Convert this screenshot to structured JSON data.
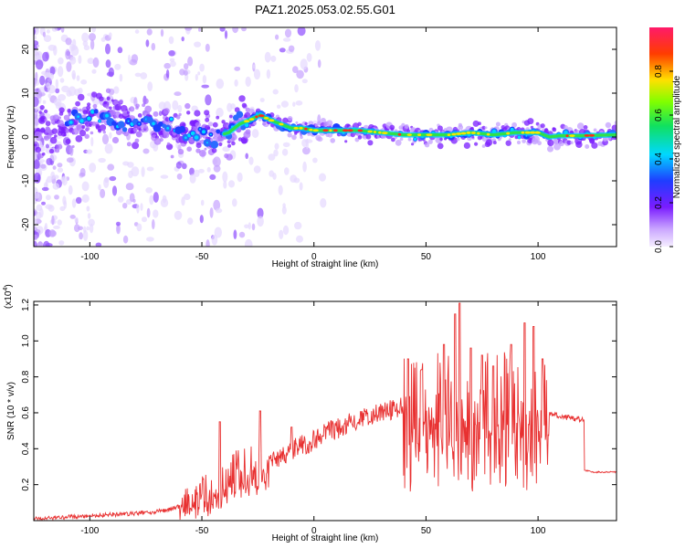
{
  "title": "PAZ1.2025.053.02.55.G01",
  "chart_data": [
    {
      "type": "heatmap",
      "xlabel": "Height of straight line (km)",
      "ylabel": "Frequency (Hz)",
      "xlim": [
        -125,
        135
      ],
      "ylim": [
        -25,
        25
      ],
      "xticks": [
        -100,
        -50,
        0,
        50,
        100
      ],
      "yticks": [
        -20,
        -10,
        0,
        10,
        20
      ],
      "colorbar": {
        "label": "Normalized spectral amplitude",
        "range": [
          0,
          1
        ],
        "ticks": [
          0.0,
          0.2,
          0.4,
          0.6,
          0.8
        ],
        "tick_labels": [
          "0.0",
          "0.2",
          "0.4",
          "0.6",
          "0.8"
        ]
      },
      "ridge": {
        "x": [
          -125,
          -115,
          -105,
          -95,
          -85,
          -75,
          -65,
          -55,
          -45,
          -38,
          -33,
          -28,
          -24,
          -20,
          -15,
          -10,
          -5,
          0,
          10,
          20,
          30,
          40,
          50,
          60,
          70,
          80,
          90,
          100,
          105,
          110,
          120,
          135
        ],
        "y": [
          1,
          2,
          4,
          5,
          4,
          3,
          2,
          1,
          0,
          1,
          3,
          4,
          5,
          4,
          3,
          2,
          2,
          1.5,
          1.5,
          1.5,
          1,
          0.5,
          0.5,
          0.5,
          1,
          0.5,
          1,
          1,
          0,
          0.3,
          0.3,
          0.5
        ]
      }
    },
    {
      "type": "line",
      "xlabel": "Height of straight line (km)",
      "ylabel": "SNR (10 * v/v)",
      "multiplier": "(x10",
      "multiplier_exp": "4",
      "multiplier_close": ")",
      "xlim": [
        -125,
        135
      ],
      "ylim": [
        0,
        1.22
      ],
      "xticks": [
        -100,
        -50,
        0,
        50,
        100
      ],
      "yticks": [
        0.2,
        0.4,
        0.6,
        0.8,
        1.0,
        1.2
      ],
      "ytick_labels": [
        "0.2",
        "0.4",
        "0.6",
        "0.8",
        "1.0",
        "1.2"
      ],
      "color": "#e83030",
      "series": [
        {
          "x": [
            -125,
            -110,
            -95,
            -80,
            -70,
            -65,
            -60,
            -55,
            -50,
            -45,
            -40,
            -35,
            -30,
            -25,
            -20,
            -15,
            -10,
            -5,
            0,
            5,
            10,
            15,
            20,
            25,
            30,
            35,
            40,
            45,
            50,
            55,
            60,
            65,
            70,
            75,
            80,
            85,
            90,
            95,
            100,
            105,
            110,
            115,
            120,
            121,
            125,
            130,
            135
          ],
          "y": [
            0.01,
            0.02,
            0.03,
            0.04,
            0.05,
            0.06,
            0.08,
            0.1,
            0.14,
            0.18,
            0.22,
            0.26,
            0.29,
            0.31,
            0.33,
            0.36,
            0.39,
            0.42,
            0.45,
            0.48,
            0.51,
            0.54,
            0.57,
            0.59,
            0.61,
            0.62,
            0.63,
            0.63,
            0.64,
            0.64,
            0.64,
            0.66,
            0.64,
            0.64,
            0.65,
            0.65,
            0.63,
            0.63,
            0.62,
            0.6,
            0.58,
            0.57,
            0.56,
            0.28,
            0.27,
            0.27,
            0.27
          ]
        }
      ],
      "spikes": [
        {
          "x": -42,
          "y": 0.55
        },
        {
          "x": -24,
          "y": 0.61
        },
        {
          "x": -10,
          "y": 0.52
        },
        {
          "x": 42,
          "y": 0.9
        },
        {
          "x": 48,
          "y": 0.84
        },
        {
          "x": 58,
          "y": 0.98
        },
        {
          "x": 63,
          "y": 1.15
        },
        {
          "x": 65,
          "y": 1.21
        },
        {
          "x": 70,
          "y": 0.96
        },
        {
          "x": 75,
          "y": 0.92
        },
        {
          "x": 80,
          "y": 0.86
        },
        {
          "x": 88,
          "y": 0.98
        },
        {
          "x": 94,
          "y": 1.1
        },
        {
          "x": 98,
          "y": 1.08
        },
        {
          "x": 102,
          "y": 0.9
        }
      ]
    }
  ]
}
